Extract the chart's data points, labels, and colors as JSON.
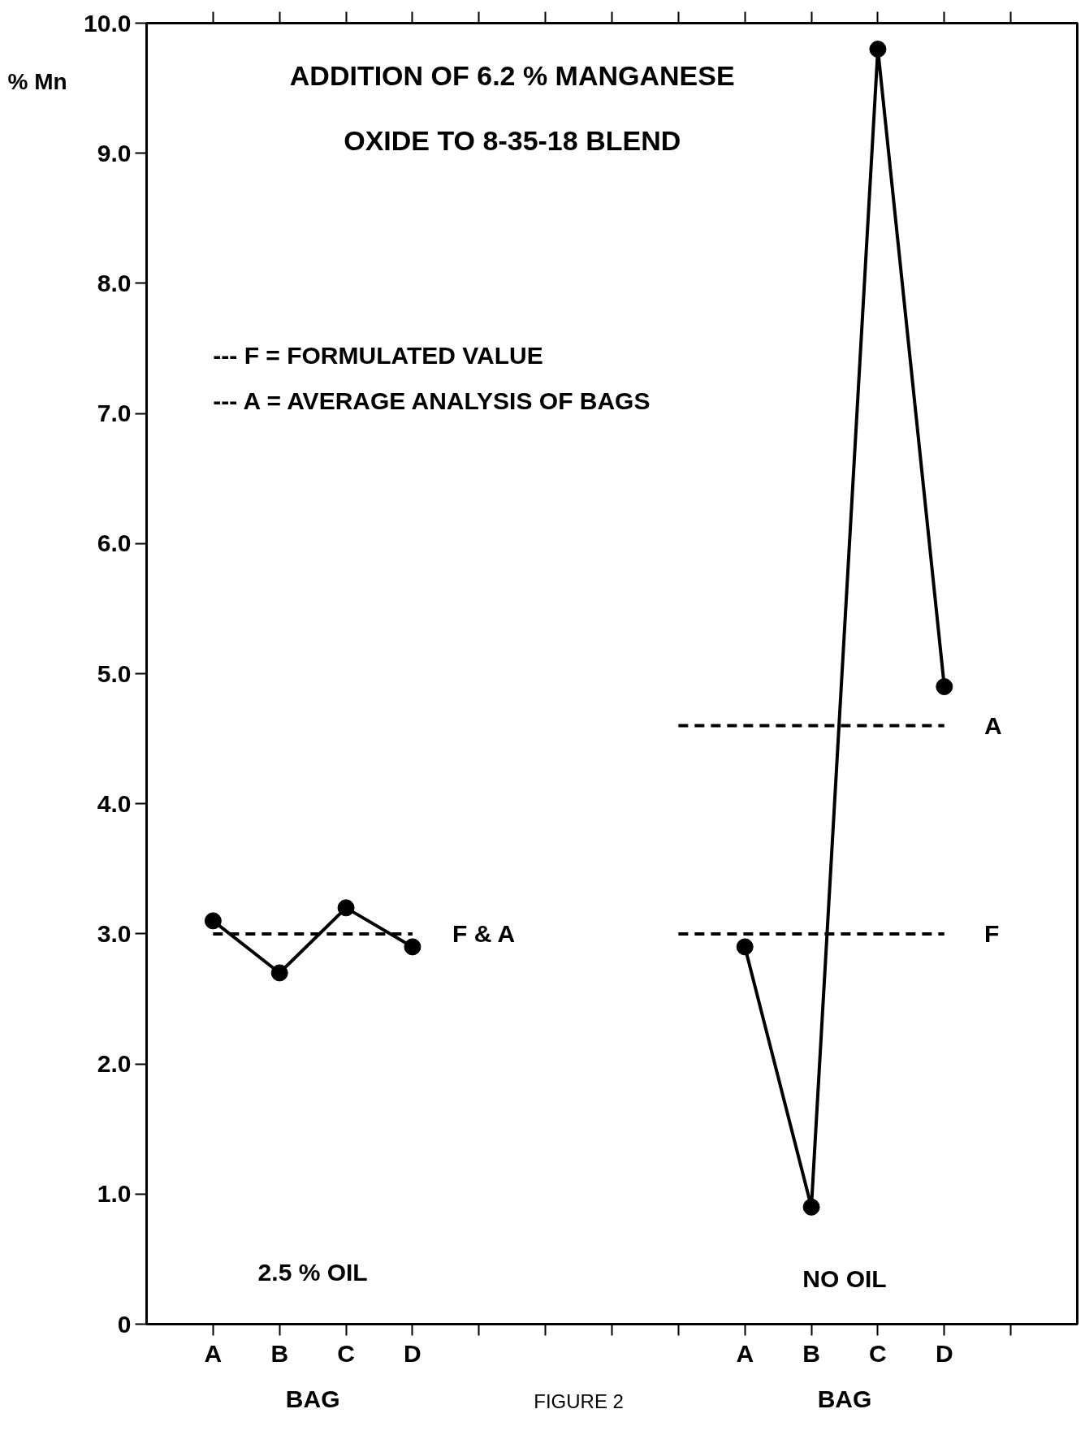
{
  "chart_data": {
    "type": "line",
    "title": "ADDITION OF 6.2 % MANGANESE OXIDE TO 8-35-18 BLEND",
    "ylabel": "% Mn",
    "xlabel": "BAG",
    "categories": [
      "A",
      "B",
      "C",
      "D",
      null,
      null,
      null,
      null,
      "A",
      "B",
      "C",
      "D",
      null
    ],
    "series": [
      {
        "color": "#000000",
        "values": [
          3.1,
          2.7,
          3.2,
          2.9,
          null,
          null,
          null,
          null,
          2.9,
          0.9,
          9.8,
          4.9,
          null
        ]
      },
      {
        "name": "F & A",
        "color": "#000000",
        "line_style": "dashed",
        "marker": "none",
        "values": [
          3.0,
          3.0,
          3.0,
          3.0,
          null,
          null,
          null,
          null,
          null,
          null,
          null,
          null,
          null
        ]
      },
      {
        "name": "A",
        "color": "#000000",
        "line_style": "dashed",
        "marker": "none",
        "values": [
          null,
          null,
          null,
          null,
          null,
          null,
          null,
          4.6,
          4.6,
          4.6,
          4.6,
          4.6,
          null
        ]
      },
      {
        "name": "F",
        "color": "#000000",
        "line_style": "dashed",
        "marker": "none",
        "values": [
          null,
          null,
          null,
          null,
          null,
          null,
          null,
          3.0,
          3.0,
          3.0,
          3.0,
          3.0,
          null
        ]
      }
    ],
    "marker": "circle",
    "line_style": "solid",
    "grid": false,
    "ylim": [
      0,
      10
    ],
    "yticks": [
      {
        "value": 0,
        "label": "0"
      },
      {
        "value": 1,
        "label": "1.0"
      },
      {
        "value": 2,
        "label": "2.0"
      },
      {
        "value": 3,
        "label": "3.0"
      },
      {
        "value": 4,
        "label": "4.0"
      },
      {
        "value": 5,
        "label": "5.0"
      },
      {
        "value": 6,
        "label": "6.0"
      },
      {
        "value": 7,
        "label": "7.0"
      },
      {
        "value": 8,
        "label": "8.0"
      },
      {
        "value": 9,
        "label": "9.0"
      },
      {
        "value": 10,
        "label": "10.0"
      }
    ],
    "annotations": [
      "--- F = FORMULATED VALUE",
      "--- A = AVERAGE ANALYSIS OF BAGS",
      "2.5 % OIL",
      "NO OIL",
      "BAG",
      "FIGURE 2"
    ]
  }
}
